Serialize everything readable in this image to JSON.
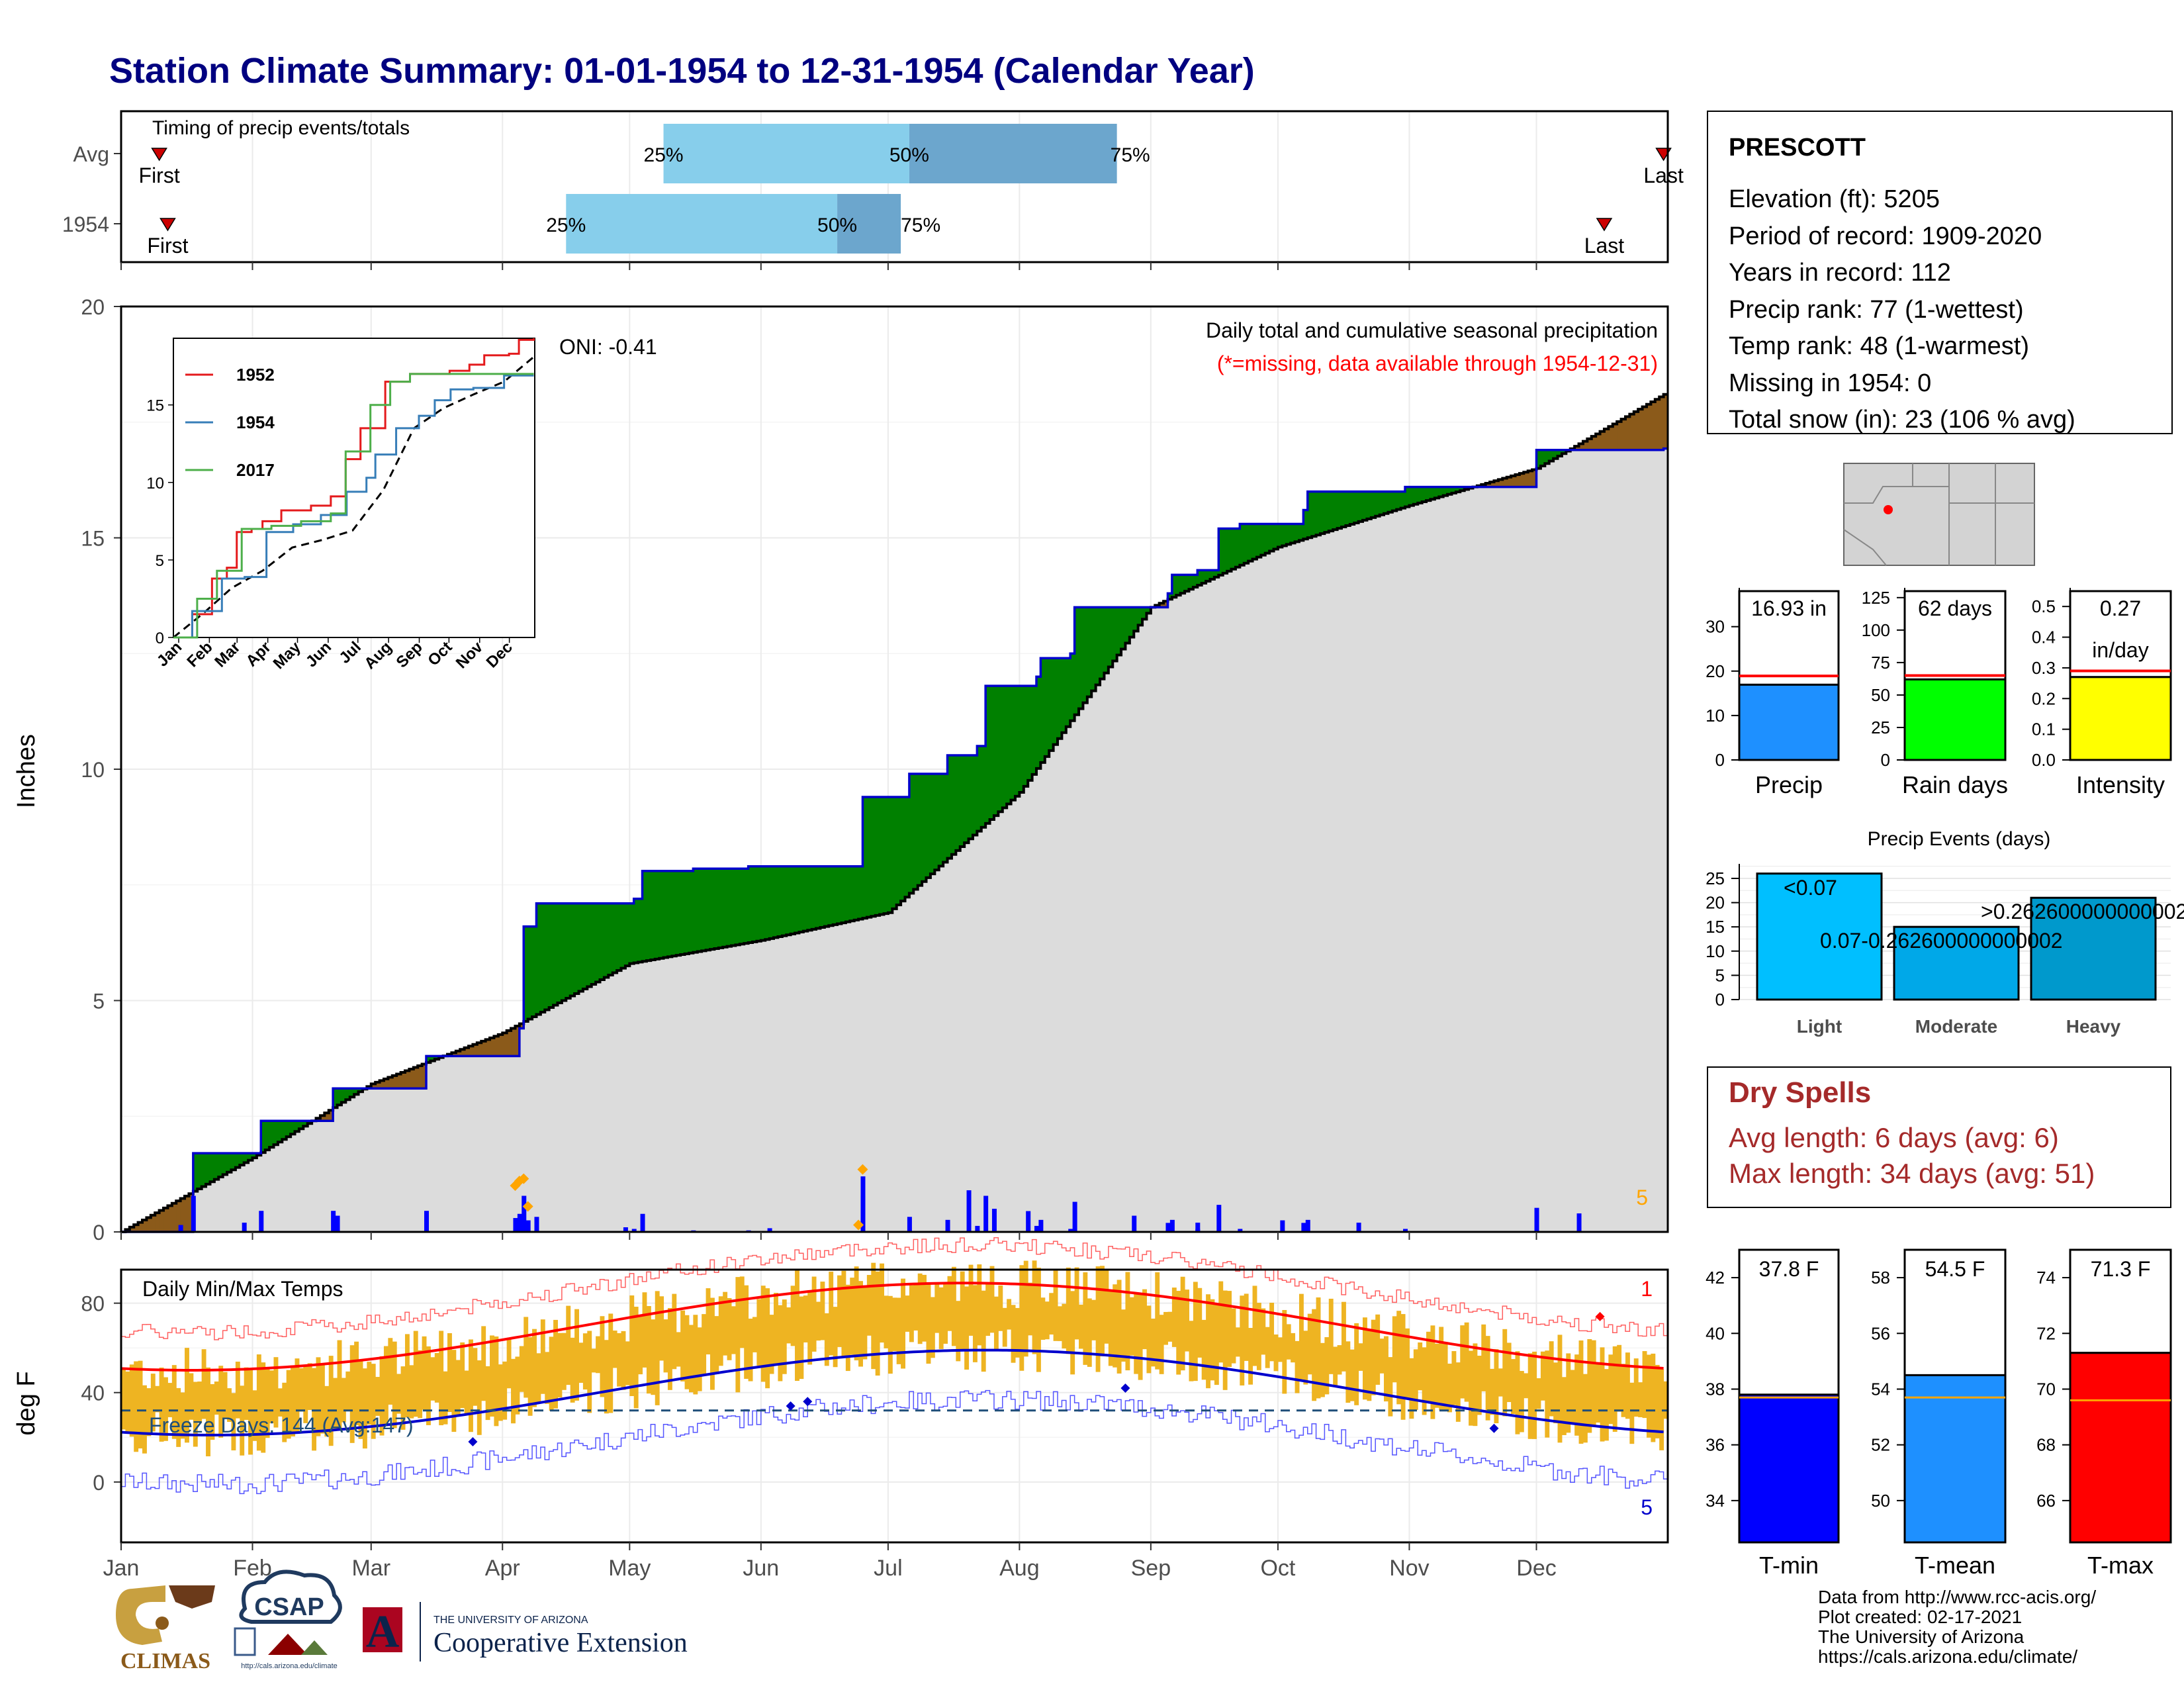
{
  "title": "Station Climate Summary: 01-01-1954 to 12-31-1954 (Calendar Year)",
  "timing": {
    "title": "Timing of precip events/totals",
    "rows": [
      {
        "label": "Avg",
        "first_day": 10,
        "p25_day": 129,
        "p50_day": 187,
        "p75_day": 236,
        "last_day": 365,
        "first_label": "First",
        "last_label": "Last",
        "p25_label": "25%",
        "p50_label": "50%",
        "p75_label": "75%"
      },
      {
        "label": "1954",
        "first_day": 12,
        "p25_day": 106,
        "p50_day": 170,
        "p75_day": 185,
        "last_day": 351,
        "first_label": "First",
        "last_label": "Last",
        "p25_label": "25%",
        "p50_label": "50%",
        "p75_label": "75%"
      }
    ],
    "colors": {
      "q1": "#87CEEB",
      "q2": "#6CA6CD",
      "marker": "#CC0000"
    }
  },
  "precip_panel": {
    "ylabel": "Inches",
    "yticks": [
      "0",
      "5",
      "10",
      "15",
      "20"
    ],
    "ylim": [
      0,
      20
    ],
    "title": "Daily total and cumulative seasonal precipitation",
    "subtitle": "(*=missing, data available through 1954-12-31)",
    "oni": "ONI: -0.41",
    "count_label": "5",
    "colors": {
      "above": "#008000",
      "below": "#8B5A1A",
      "climo": "#DCDCDC",
      "line": "#0000CC",
      "daily": "#0000FF",
      "snow": "#FFA500"
    }
  },
  "inset": {
    "yticks": [
      "0",
      "5",
      "10",
      "15"
    ],
    "xticks": [
      "Jan",
      "Feb",
      "Mar",
      "Apr",
      "May",
      "Jun",
      "Jul",
      "Aug",
      "Sep",
      "Oct",
      "Nov",
      "Dec"
    ],
    "legend": [
      {
        "name": "1952",
        "color": "#E41A1C"
      },
      {
        "name": "1954",
        "color": "#377EB8"
      },
      {
        "name": "2017",
        "color": "#4DAF4A"
      }
    ]
  },
  "temp_panel": {
    "ylabel": "deg F",
    "title": "Daily Min/Max Temps",
    "yticks": [
      "0",
      "40",
      "80"
    ],
    "freeze_label": "Freeze Days: 144 (Avg:147)",
    "record_high_count": "1",
    "record_low_count": "5",
    "colors": {
      "bars": "#EEB422",
      "max_norm": "#FF0000",
      "min_norm": "#0000CC",
      "freeze": "#1F4E79"
    }
  },
  "months": [
    "Jan",
    "Feb",
    "Mar",
    "Apr",
    "May",
    "Jun",
    "Jul",
    "Aug",
    "Sep",
    "Oct",
    "Nov",
    "Dec"
  ],
  "station": {
    "name": "PRESCOTT",
    "lines": [
      "Elevation (ft): 5205",
      "Period of record: 1909-2020",
      "Years in record: 112",
      "Precip rank: 77 (1-wettest)",
      "Temp rank: 48 (1-warmest)",
      "Missing in 1954: 0",
      "Total snow (in): 23 (106 % avg)"
    ]
  },
  "mini_bars": [
    {
      "label": "Precip",
      "value": 16.93,
      "avg": 18.9,
      "value_text": "16.93 in",
      "yticks": [
        "0",
        "10",
        "20",
        "30"
      ],
      "ymax": 38,
      "color": "#1E90FF"
    },
    {
      "label": "Rain days",
      "value": 62,
      "avg": 65,
      "value_text": "62 days",
      "yticks": [
        "0",
        "25",
        "50",
        "75",
        "100",
        "125"
      ],
      "ymax": 130,
      "color": "#00FF00"
    },
    {
      "label": "Intensity",
      "value": 0.27,
      "avg": 0.29,
      "value_text": "0.27",
      "value_text2": "in/day",
      "yticks": [
        "0.0",
        "0.1",
        "0.2",
        "0.3",
        "0.4",
        "0.5"
      ],
      "ymax": 0.55,
      "color": "#FFFF00"
    }
  ],
  "events": {
    "title": "Precip Events (days)",
    "yticks": [
      "0",
      "5",
      "10",
      "15",
      "20",
      "25"
    ],
    "ymax": 28,
    "bars": [
      {
        "category": "Light",
        "value": 26,
        "label": "<0.07",
        "color": "#00BFFF"
      },
      {
        "category": "Moderate",
        "value": 15,
        "label": "0.07-0.262600000000002",
        "color": "#00A8E8"
      },
      {
        "category": "Heavy",
        "value": 21,
        "label": ">0.262600000000002",
        "color": "#0099CC"
      }
    ]
  },
  "dry_spells": {
    "title": "Dry Spells",
    "avg": "Avg length: 6 days (avg: 6)",
    "max": "Max length: 34 days (avg: 51)"
  },
  "temp_bars": [
    {
      "label": "T-min",
      "value": 37.8,
      "avg": 37.7,
      "value_text": "37.8 F",
      "yticks": [
        "34",
        "36",
        "38",
        "40",
        "42"
      ],
      "ymin": 32.5,
      "ymax": 43,
      "color": "#0000FF"
    },
    {
      "label": "T-mean",
      "value": 54.5,
      "avg": 53.7,
      "value_text": "54.5 F",
      "yticks": [
        "50",
        "52",
        "54",
        "56",
        "58"
      ],
      "ymin": 48.5,
      "ymax": 59,
      "color": "#1E90FF"
    },
    {
      "label": "T-max",
      "value": 71.3,
      "avg": 69.6,
      "value_text": "71.3 F",
      "yticks": [
        "66",
        "68",
        "70",
        "72",
        "74"
      ],
      "ymin": 64.5,
      "ymax": 75,
      "color": "#FF0000"
    }
  ],
  "credits": [
    "Data from http://www.rcc-acis.org/",
    "Plot created: 02-17-2021",
    "The University of Arizona",
    "https://cals.arizona.edu/climate/"
  ],
  "logos": {
    "climas": "CLIMAS",
    "csap": "CSAP",
    "csap_url": "http://cals.arizona.edu/climate",
    "ua_small": "THE UNIVERSITY OF ARIZONA",
    "ua_big": "Cooperative Extension",
    "ua_letter": "A"
  },
  "chart_data": [
    {
      "type": "line",
      "title": "Daily total and cumulative seasonal precipitation",
      "ylabel": "Inches",
      "ylim": [
        0,
        20
      ],
      "xlim": [
        1,
        365
      ],
      "series": [
        {
          "name": "1954",
          "x": [
            1,
            16,
            18,
            32,
            34,
            48,
            51,
            72,
            73,
            93,
            95,
            96,
            99,
            122,
            124,
            135,
            136,
            148,
            149,
            175,
            176,
            185,
            187,
            195,
            196,
            203,
            205,
            217,
            218,
            225,
            226,
            248,
            249,
            255,
            260,
            265,
            280,
            281,
            304,
            335,
            346,
            365
          ],
          "values": [
            0,
            0,
            1.7,
            1.7,
            2.4,
            2.4,
            3.1,
            3.1,
            3.8,
            3.8,
            4.4,
            6.6,
            7.1,
            7.2,
            7.8,
            7.8,
            7.85,
            7.85,
            7.9,
            7.9,
            9.4,
            9.4,
            9.9,
            9.9,
            10.3,
            10.5,
            11.8,
            12,
            12.4,
            12.5,
            13.5,
            13.8,
            14.2,
            14.3,
            15.2,
            15.3,
            15.6,
            16.0,
            16.1,
            16.9,
            16.9,
            16.93
          ]
        },
        {
          "name": "Avg",
          "x": [
            1,
            32,
            60,
            91,
            121,
            152,
            182,
            213,
            244,
            274,
            305,
            335,
            365
          ],
          "values": [
            0,
            1.6,
            3.2,
            4.3,
            5.8,
            6.3,
            6.9,
            9.5,
            13.5,
            14.8,
            15.7,
            16.5,
            18.1
          ]
        }
      ]
    },
    {
      "type": "bar",
      "title": "Precip Events (days)",
      "categories": [
        "Light",
        "Moderate",
        "Heavy"
      ],
      "values": [
        26,
        15,
        21
      ]
    }
  ]
}
